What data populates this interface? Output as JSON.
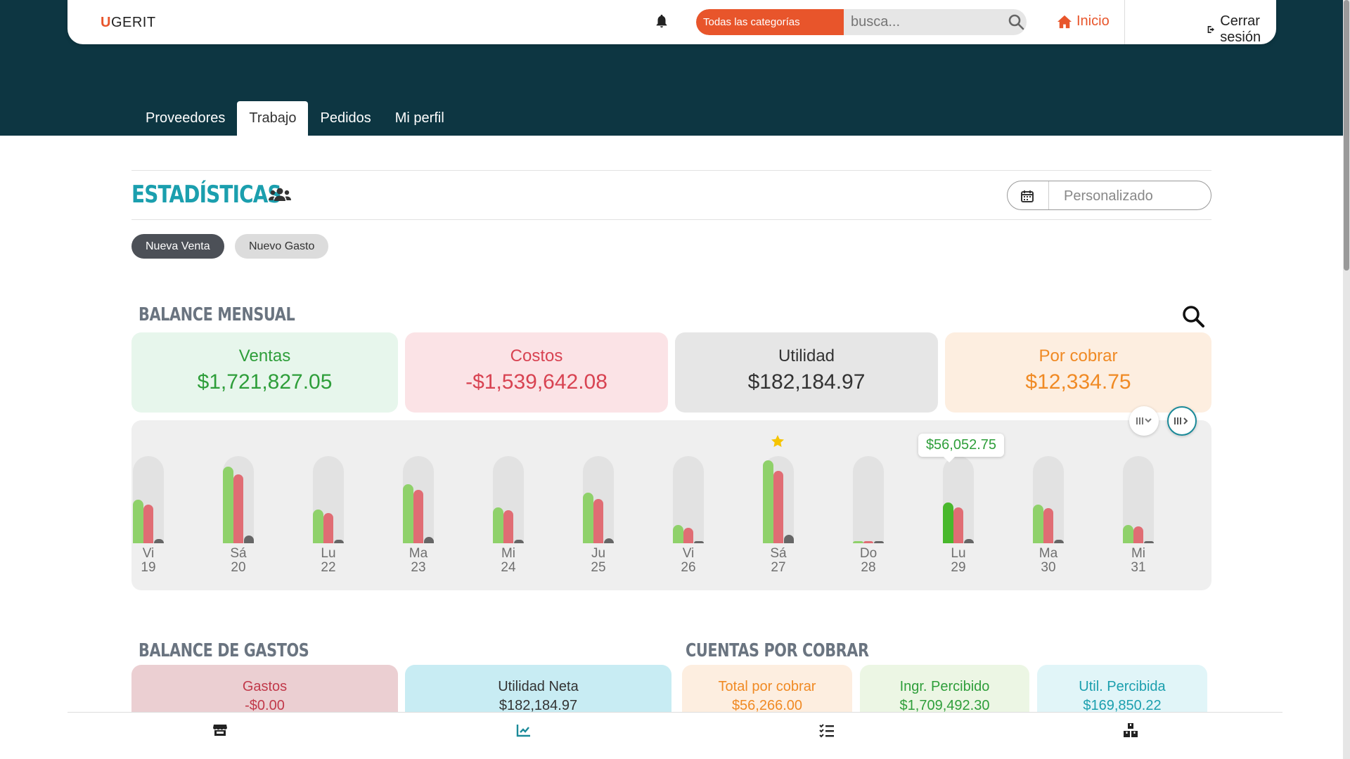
{
  "brand": {
    "logo_mark": "U",
    "logo_text": "GERIT"
  },
  "topbar": {
    "category_button": "Todas las categorías",
    "search_placeholder": "busca...",
    "home_label": "Inicio",
    "logout_label": "Cerrar sesión"
  },
  "tabs": [
    {
      "label": "Proveedores",
      "active": false
    },
    {
      "label": "Trabajo",
      "active": true
    },
    {
      "label": "Pedidos",
      "active": false
    },
    {
      "label": "Mi perfil",
      "active": false
    }
  ],
  "stats": {
    "title": "ESTADÍSTICAS",
    "date_range": "Personalizado",
    "new_sale": "Nueva Venta",
    "new_expense": "Nuevo Gasto"
  },
  "monthly": {
    "title": "BALANCE MENSUAL",
    "cards": [
      {
        "label": "Ventas",
        "value": "$1,721,827.05",
        "color": "#2e9e3a",
        "bg": "#e7f6ec"
      },
      {
        "label": "Costos",
        "value": "-$1,539,642.08",
        "color": "#d84352",
        "bg": "#fbe3e6"
      },
      {
        "label": "Utilidad",
        "value": "$182,184.97",
        "color": "#333333",
        "bg": "#e6e6e6"
      },
      {
        "label": "Por cobrar",
        "value": "$12,334.75",
        "color": "#f08a24",
        "bg": "#fdeee0"
      }
    ]
  },
  "chart_data": {
    "type": "bar",
    "categories": [
      "Vi 19",
      "Sá 20",
      "Lu 22",
      "Ma 23",
      "Mi 24",
      "Ju 25",
      "Vi 26",
      "Sá 27",
      "Do 28",
      "Lu 29",
      "Ma 30",
      "Mi 31"
    ],
    "days": [
      {
        "wd": "Vi",
        "d": "19"
      },
      {
        "wd": "Sá",
        "d": "20"
      },
      {
        "wd": "Lu",
        "d": "22"
      },
      {
        "wd": "Ma",
        "d": "23"
      },
      {
        "wd": "Mi",
        "d": "24"
      },
      {
        "wd": "Ju",
        "d": "25"
      },
      {
        "wd": "Vi",
        "d": "26"
      },
      {
        "wd": "Sá",
        "d": "27"
      },
      {
        "wd": "Do",
        "d": "28"
      },
      {
        "wd": "Lu",
        "d": "29"
      },
      {
        "wd": "Ma",
        "d": "30"
      },
      {
        "wd": "Mi",
        "d": "31"
      }
    ],
    "series": [
      {
        "key": "ventas",
        "color": "#8fd16a",
        "values": [
          0.5,
          0.88,
          0.39,
          0.68,
          0.41,
          0.58,
          0.21,
          0.95,
          0.02,
          0.47,
          0.44,
          0.21
        ]
      },
      {
        "key": "costos",
        "color": "#e06d74",
        "values": [
          0.44,
          0.79,
          0.35,
          0.61,
          0.38,
          0.51,
          0.18,
          0.83,
          0.02,
          0.41,
          0.4,
          0.19
        ]
      },
      {
        "key": "utilidad",
        "color": "#666666",
        "values": [
          0.05,
          0.09,
          0.04,
          0.07,
          0.04,
          0.06,
          0.02,
          0.1,
          0.0,
          0.05,
          0.04,
          0.02
        ]
      }
    ],
    "highlight_day_index": 9,
    "highlight_color": "#49b82c",
    "tooltip_value": "$56,052.75",
    "star_day_index": 7
  },
  "expenses": {
    "title": "BALANCE DE GASTOS",
    "cards": [
      {
        "label": "Gastos",
        "value": "-$0.00",
        "color": "#c1394a",
        "bg": "#ebcfd2"
      },
      {
        "label": "Utilidad Neta",
        "value": "$182,184.97",
        "color": "#333333",
        "bg": "#c8ecf3"
      }
    ]
  },
  "receivables": {
    "title": "CUENTAS POR COBRAR",
    "cards": [
      {
        "label": "Total por cobrar",
        "value": "$56,266.00",
        "color": "#f08a24",
        "bg": "#fdeee0"
      },
      {
        "label": "Ingr. Percibido",
        "value": "$1,709,492.30",
        "color": "#2e9e3a",
        "bg": "#ecf6e4"
      },
      {
        "label": "Util. Percibida",
        "value": "$169,850.22",
        "color": "#1b9fae",
        "bg": "#e1f5f8"
      }
    ]
  }
}
